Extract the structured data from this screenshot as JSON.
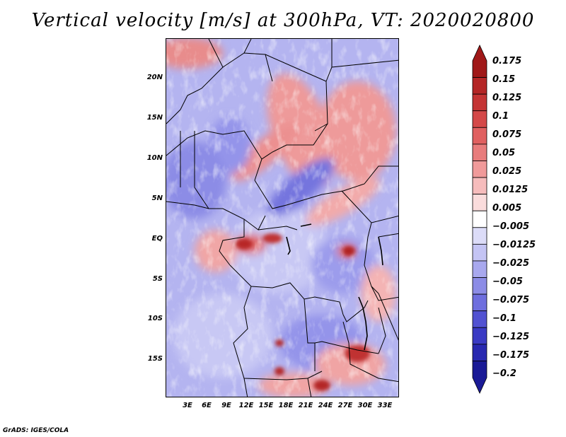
{
  "title": "Vertical velocity [m/s] at 300hPa, VT: 2020020800",
  "footer": "GrADS: IGES/COLA",
  "lat_ticks": [
    "20N",
    "15N",
    "10N",
    "5N",
    "EQ",
    "5S",
    "10S",
    "15S"
  ],
  "lon_ticks": [
    "3E",
    "6E",
    "9E",
    "12E",
    "15E",
    "18E",
    "21E",
    "24E",
    "27E",
    "30E",
    "33E"
  ],
  "colorbar": {
    "labels": [
      "0.175",
      "0.15",
      "0.125",
      "0.1",
      "0.075",
      "0.05",
      "0.025",
      "0.0125",
      "0.005",
      "−0.005",
      "−0.0125",
      "−0.025",
      "−0.05",
      "−0.075",
      "−0.1",
      "−0.125",
      "−0.175",
      "−0.2"
    ],
    "colors": [
      "#a01818",
      "#b42626",
      "#c43434",
      "#d44848",
      "#e06060",
      "#e87c7c",
      "#f09a9a",
      "#f6bcbc",
      "#fadcdc",
      "#ffffff",
      "#dcdcf8",
      "#c4c4f4",
      "#a8a8ee",
      "#8c8ce6",
      "#6e6ede",
      "#5252d2",
      "#3a3ac4",
      "#2828b0",
      "#1a1a96"
    ]
  }
}
